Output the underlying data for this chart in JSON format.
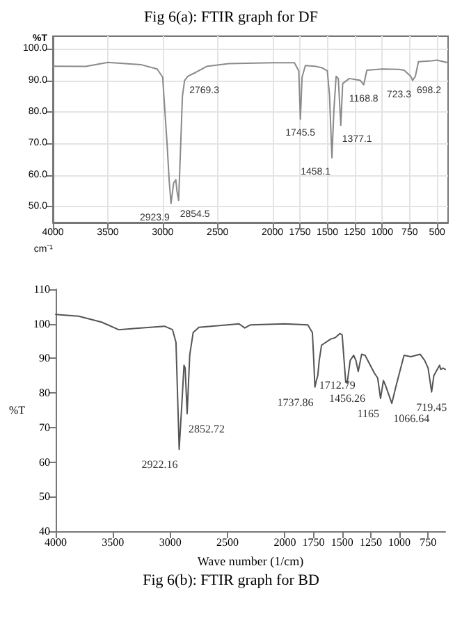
{
  "chart_data": [
    {
      "type": "line",
      "title": "Fig 6(a): FTIR graph for DF",
      "xlabel": "cm⁻¹",
      "ylabel": "%T",
      "series": [
        {
          "color": "#8a8a8a",
          "x": [
            4000,
            3700,
            3500,
            3200,
            3050,
            3000,
            2960,
            2940,
            2923.9,
            2900,
            2880,
            2870,
            2854.5,
            2840,
            2820,
            2800,
            2769.3,
            2700,
            2600,
            2400,
            2000,
            1800,
            1760,
            1745.5,
            1730,
            1700,
            1600,
            1550,
            1500,
            1480,
            1458.1,
            1440,
            1420,
            1400,
            1377.1,
            1360,
            1300,
            1200,
            1168.8,
            1140,
            1000,
            850,
            800,
            740,
            723.3,
            698.2,
            670,
            550,
            500,
            400
          ],
          "values": [
            94.5,
            94.4,
            95.7,
            95,
            93.6,
            91,
            70,
            58,
            51,
            57.5,
            58.5,
            55,
            52,
            65.5,
            85,
            90,
            91.3,
            92.5,
            94.4,
            95.3,
            95.6,
            95.6,
            93,
            77.7,
            91,
            94.7,
            94.4,
            94,
            93,
            85.3,
            65.5,
            80.7,
            91.3,
            90.6,
            75.8,
            89,
            90.6,
            90,
            88.6,
            93.2,
            93.6,
            93.5,
            93.2,
            91.3,
            90,
            91.3,
            95.9,
            96.2,
            96.4,
            95.6
          ]
        }
      ],
      "xlim": [
        4000,
        400
      ],
      "xticks": [
        4000,
        3500,
        3000,
        2500,
        2000,
        1750,
        1500,
        1250,
        1000,
        750,
        500
      ],
      "ylim": [
        45,
        104
      ],
      "yticks": [
        {
          "value": 50,
          "label": "50.0"
        },
        {
          "value": 60,
          "label": "60.0"
        },
        {
          "value": 70,
          "label": "70.0"
        },
        {
          "value": 80,
          "label": "80.0"
        },
        {
          "value": 90,
          "label": "90.0"
        },
        {
          "value": 100,
          "label": "100.0"
        }
      ],
      "grid": true,
      "marker": "none",
      "line_style": "solid",
      "annotations": [
        {
          "text": "2923.9",
          "x": 2923.9,
          "y": 51
        },
        {
          "text": "2854.5",
          "x": 2854.5,
          "y": 52
        },
        {
          "text": "2769.3",
          "x": 2769.3,
          "y": 91.3
        },
        {
          "text": "1745.5",
          "x": 1745.5,
          "y": 77.7
        },
        {
          "text": "1458.1",
          "x": 1458.1,
          "y": 65.5
        },
        {
          "text": "1377.1",
          "x": 1377.1,
          "y": 75.8
        },
        {
          "text": "1168.8",
          "x": 1168.8,
          "y": 88.6
        },
        {
          "text": "723.3",
          "x": 723.3,
          "y": 90
        },
        {
          "text": "698.2",
          "x": 698.2,
          "y": 91.3
        }
      ]
    },
    {
      "type": "line",
      "title": "Fig 6(b): FTIR graph for BD",
      "xlabel": "Wave number (1/cm)",
      "ylabel": "%T",
      "series": [
        {
          "color": "#555555",
          "x": [
            4000,
            3800,
            3600,
            3450,
            3300,
            3050,
            2980,
            2950,
            2922.16,
            2900,
            2880,
            2870,
            2852.72,
            2830,
            2800,
            2750,
            2500,
            2400,
            2350,
            2300,
            2000,
            1800,
            1760,
            1750,
            1737.86,
            1725,
            1712.79,
            1700,
            1680,
            1600,
            1560,
            1520,
            1500,
            1470,
            1456.26,
            1430,
            1400,
            1380,
            1360,
            1330,
            1300,
            1220,
            1190,
            1165,
            1140,
            1120,
            1066.64,
            1030,
            1000,
            960,
            900,
            820,
            780,
            750,
            719.45,
            700,
            670,
            650,
            640,
            620,
            600
          ],
          "values": [
            102.7,
            102.2,
            100.5,
            98.3,
            98.7,
            99.3,
            98.3,
            94.6,
            63.7,
            76.2,
            88,
            87.2,
            74,
            91,
            97.5,
            99,
            99.7,
            100,
            98.8,
            99.7,
            100,
            99.7,
            97.5,
            91,
            81.7,
            83.6,
            85,
            89.4,
            93.8,
            95.6,
            96,
            97.2,
            96.8,
            83.6,
            82.8,
            89.4,
            90.9,
            89.4,
            86.2,
            91.2,
            90.9,
            85.8,
            84.3,
            78.4,
            83.6,
            82,
            77,
            82,
            85.8,
            90.9,
            90.5,
            91.2,
            89.4,
            87.2,
            80.3,
            85,
            86.8,
            88,
            86.8,
            87.2,
            86.8
          ]
        }
      ],
      "xlim": [
        4000,
        600
      ],
      "xticks": [
        4000,
        3500,
        3000,
        2500,
        2000,
        1750,
        1500,
        1250,
        1000,
        750
      ],
      "ylim": [
        40,
        110
      ],
      "yticks": [
        40,
        50,
        60,
        70,
        80,
        90,
        100,
        110
      ],
      "grid": false,
      "marker": "none",
      "line_style": "solid",
      "annotations": [
        {
          "text": "2922.16",
          "x": 2922.16,
          "y": 63.7
        },
        {
          "text": "2852.72",
          "x": 2852.72,
          "y": 74
        },
        {
          "text": "1737.86",
          "x": 1737.86,
          "y": 81.7
        },
        {
          "text": "1712.79",
          "x": 1712.79,
          "y": 85
        },
        {
          "text": "1456.26",
          "x": 1456.26,
          "y": 82.8
        },
        {
          "text": "1165",
          "x": 1165,
          "y": 78.4
        },
        {
          "text": "1066.64",
          "x": 1066.64,
          "y": 77
        },
        {
          "text": "719.45",
          "x": 719.45,
          "y": 80.3
        }
      ]
    }
  ]
}
